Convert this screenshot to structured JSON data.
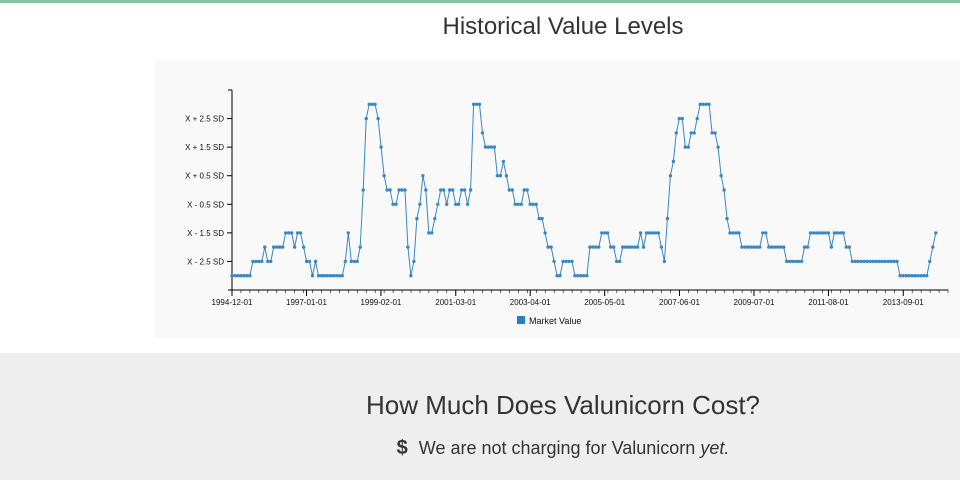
{
  "chart_section": {
    "title": "Historical Value Levels"
  },
  "pricing": {
    "title": "How Much Does Valunicorn Cost?",
    "currency_symbol": "$",
    "note_main": "We are not charging for Valunicorn",
    "note_emphasis": "yet."
  },
  "colors": {
    "line": "#3a87c4",
    "marker": "#3a87c4",
    "axis": "#000000",
    "legend": "#2a7fc0",
    "accent_rule": "#7fc7a4"
  },
  "chart_data": {
    "type": "line",
    "title": "Historical Value Levels",
    "series_name": "Market Value",
    "y_tick_labels": [
      "X - 2.5 SD",
      "X - 1.5 SD",
      "X - 0.5 SD",
      "X + 0.5 SD",
      "X + 1.5 SD",
      "X + 2.5 SD"
    ],
    "y_tick_values": [
      -2.5,
      -1.5,
      -0.5,
      0.5,
      1.5,
      2.5
    ],
    "ylim": [
      -3.5,
      3.5
    ],
    "x_tick_labels": [
      "1994-12-01",
      "1997-01-01",
      "1999-02-01",
      "2001-03-01",
      "2003-04-01",
      "2005-05-01",
      "2007-06-01",
      "2009-07-01",
      "2011-08-01",
      "2013-09-01"
    ],
    "x_tick_values": [
      1994.92,
      1997.0,
      1999.08,
      2001.17,
      2003.25,
      2005.33,
      2007.42,
      2009.5,
      2011.58,
      2013.67
    ],
    "xlim": [
      1994.92,
      2014.92
    ],
    "monthly_step": 0.0833,
    "x_start": 1994.92,
    "values": [
      -3.0,
      -3.0,
      -3.0,
      -3.0,
      -3.0,
      -3.0,
      -3.0,
      -2.5,
      -2.5,
      -2.5,
      -2.5,
      -2.0,
      -2.5,
      -2.5,
      -2.0,
      -2.0,
      -2.0,
      -2.0,
      -1.5,
      -1.5,
      -1.5,
      -2.0,
      -1.5,
      -1.5,
      -2.0,
      -2.5,
      -2.5,
      -3.0,
      -2.5,
      -3.0,
      -3.0,
      -3.0,
      -3.0,
      -3.0,
      -3.0,
      -3.0,
      -3.0,
      -3.0,
      -2.5,
      -1.5,
      -2.5,
      -2.5,
      -2.5,
      -2.0,
      0.0,
      2.5,
      3.0,
      3.0,
      3.0,
      2.5,
      1.5,
      0.5,
      0.0,
      0.0,
      -0.5,
      -0.5,
      0.0,
      0.0,
      0.0,
      -2.0,
      -3.0,
      -2.5,
      -1.0,
      -0.5,
      0.5,
      0.0,
      -1.5,
      -1.5,
      -1.0,
      -0.5,
      0.0,
      0.0,
      -0.5,
      0.0,
      0.0,
      -0.5,
      -0.5,
      0.0,
      0.0,
      -0.5,
      0.0,
      3.0,
      3.0,
      3.0,
      2.0,
      1.5,
      1.5,
      1.5,
      1.5,
      0.5,
      0.5,
      1.0,
      0.5,
      0.0,
      0.0,
      -0.5,
      -0.5,
      -0.5,
      0.0,
      0.0,
      -0.5,
      -0.5,
      -0.5,
      -1.0,
      -1.0,
      -1.5,
      -2.0,
      -2.0,
      -2.5,
      -3.0,
      -3.0,
      -2.5,
      -2.5,
      -2.5,
      -2.5,
      -3.0,
      -3.0,
      -3.0,
      -3.0,
      -3.0,
      -2.0,
      -2.0,
      -2.0,
      -2.0,
      -1.5,
      -1.5,
      -1.5,
      -2.0,
      -2.0,
      -2.5,
      -2.5,
      -2.0,
      -2.0,
      -2.0,
      -2.0,
      -2.0,
      -2.0,
      -1.5,
      -2.0,
      -1.5,
      -1.5,
      -1.5,
      -1.5,
      -1.5,
      -2.0,
      -2.5,
      -1.0,
      0.5,
      1.0,
      2.0,
      2.5,
      2.5,
      1.5,
      1.5,
      2.0,
      2.0,
      2.5,
      3.0,
      3.0,
      3.0,
      3.0,
      2.0,
      2.0,
      1.5,
      0.5,
      0.0,
      -1.0,
      -1.5,
      -1.5,
      -1.5,
      -1.5,
      -2.0,
      -2.0,
      -2.0,
      -2.0,
      -2.0,
      -2.0,
      -2.0,
      -1.5,
      -1.5,
      -2.0,
      -2.0,
      -2.0,
      -2.0,
      -2.0,
      -2.0,
      -2.5,
      -2.5,
      -2.5,
      -2.5,
      -2.5,
      -2.5,
      -2.0,
      -2.0,
      -1.5,
      -1.5,
      -1.5,
      -1.5,
      -1.5,
      -1.5,
      -1.5,
      -2.0,
      -1.5,
      -1.5,
      -1.5,
      -1.5,
      -2.0,
      -2.0,
      -2.5,
      -2.5,
      -2.5,
      -2.5,
      -2.5,
      -2.5,
      -2.5,
      -2.5,
      -2.5,
      -2.5,
      -2.5,
      -2.5,
      -2.5,
      -2.5,
      -2.5,
      -2.5,
      -3.0,
      -3.0,
      -3.0,
      -3.0,
      -3.0,
      -3.0,
      -3.0,
      -3.0,
      -3.0,
      -3.0,
      -2.5,
      -2.0,
      -1.5
    ],
    "legend_position": "bottom-center"
  }
}
